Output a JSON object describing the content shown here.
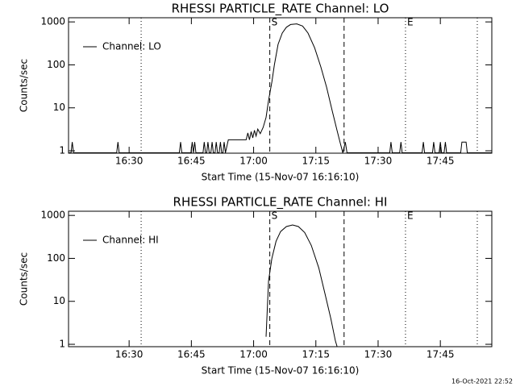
{
  "chart_data": [
    {
      "type": "line",
      "title": "RHESSI PARTICLE_RATE Channel: LO",
      "xlabel": "Start Time (15-Nov-07 16:16:10)",
      "ylabel": "Counts/sec",
      "log_y": true,
      "legend": "upper left",
      "xlim": [
        15.4,
        117.4
      ],
      "ylim": [
        0.88,
        1250
      ],
      "xticks": [
        {
          "value": 30,
          "label": "16:30"
        },
        {
          "value": 45,
          "label": "16:45"
        },
        {
          "value": 60,
          "label": "17:00"
        },
        {
          "value": 75,
          "label": "17:15"
        },
        {
          "value": 90,
          "label": "17:30"
        },
        {
          "value": 105,
          "label": "17:45"
        }
      ],
      "yticks": [
        1,
        10,
        100,
        1000
      ],
      "vlines": [
        {
          "x": 32.9,
          "style": "dotted"
        },
        {
          "x": 63.9,
          "style": "dashed",
          "label": "S"
        },
        {
          "x": 81.8,
          "style": "dashed"
        },
        {
          "x": 96.6,
          "style": "dotted",
          "label": "E"
        },
        {
          "x": 113.9,
          "style": "dotted"
        }
      ],
      "series": [
        {
          "name": "Channel: LO",
          "color": "#000000",
          "x": [
            15.5,
            16.0,
            16.3,
            16.6,
            27.0,
            27.3,
            27.6,
            42.1,
            42.4,
            42.7,
            44.9,
            45.2,
            45.5,
            45.8,
            46.1,
            47.8,
            48.1,
            48.4,
            48.7,
            49.0,
            49.3,
            49.7,
            50.0,
            50.3,
            50.7,
            51.0,
            51.3,
            51.7,
            52.0,
            52.3,
            52.6,
            52.9,
            53.2,
            53.9,
            58.2,
            58.6,
            59.0,
            59.4,
            59.8,
            60.2,
            60.6,
            61.0,
            61.6,
            62.3,
            63.0,
            63.6,
            64.4,
            65.0,
            65.9,
            66.9,
            67.9,
            68.9,
            70.4,
            71.8,
            73.1,
            74.7,
            76.2,
            77.6,
            79.0,
            80.1,
            80.9,
            81.5,
            82.1,
            82.5,
            92.8,
            93.1,
            93.4,
            95.2,
            95.5,
            95.8,
            100.6,
            100.9,
            101.2,
            103.1,
            103.4,
            103.7,
            104.7,
            105.0,
            105.3,
            105.9,
            106.2,
            106.5,
            109.9,
            110.2,
            111.2,
            111.5,
            117.3
          ],
          "values": [
            0.9,
            0.9,
            1.6,
            0.9,
            0.9,
            1.6,
            0.9,
            0.9,
            1.6,
            0.9,
            0.9,
            1.6,
            0.9,
            1.6,
            0.9,
            0.9,
            1.6,
            0.9,
            0.9,
            1.6,
            0.9,
            0.9,
            1.6,
            0.9,
            0.9,
            1.6,
            0.9,
            0.9,
            1.6,
            0.9,
            0.9,
            1.6,
            0.9,
            1.8,
            1.8,
            2.6,
            1.8,
            2.8,
            2.0,
            3.0,
            2.2,
            3.2,
            2.5,
            3.5,
            6,
            15,
            40,
            100,
            300,
            550,
            750,
            870,
            900,
            800,
            550,
            250,
            90,
            30,
            8,
            3,
            1.5,
            0.9,
            1.6,
            0.9,
            0.9,
            1.6,
            0.9,
            0.9,
            1.6,
            0.9,
            0.9,
            1.6,
            0.9,
            0.9,
            1.6,
            0.9,
            0.9,
            1.6,
            0.9,
            0.9,
            1.6,
            0.9,
            0.9,
            1.6,
            1.6,
            0.9,
            0.9
          ]
        }
      ]
    },
    {
      "type": "line",
      "title": "RHESSI PARTICLE_RATE Channel: HI",
      "xlabel": "Start Time (15-Nov-07 16:16:10)",
      "ylabel": "Counts/sec",
      "log_y": true,
      "legend": "upper left",
      "xlim": [
        15.4,
        117.4
      ],
      "ylim": [
        0.88,
        1250
      ],
      "xticks": [
        {
          "value": 30,
          "label": "16:30"
        },
        {
          "value": 45,
          "label": "16:45"
        },
        {
          "value": 60,
          "label": "17:00"
        },
        {
          "value": 75,
          "label": "17:15"
        },
        {
          "value": 90,
          "label": "17:30"
        },
        {
          "value": 105,
          "label": "17:45"
        }
      ],
      "yticks": [
        1,
        10,
        100,
        1000
      ],
      "vlines": [
        {
          "x": 32.9,
          "style": "dotted"
        },
        {
          "x": 63.9,
          "style": "dashed",
          "label": "S"
        },
        {
          "x": 81.8,
          "style": "dashed"
        },
        {
          "x": 96.6,
          "style": "dotted",
          "label": "E"
        },
        {
          "x": 113.9,
          "style": "dotted"
        }
      ],
      "series": [
        {
          "name": "Channel: HI",
          "color": "#000000",
          "x": [
            63.0,
            63.6,
            64.4,
            65.4,
            66.5,
            67.9,
            69.4,
            70.8,
            72.3,
            73.9,
            75.7,
            77.2,
            78.6,
            79.7,
            80.1
          ],
          "values": [
            1.5,
            30,
            100,
            250,
            420,
            550,
            600,
            550,
            400,
            200,
            60,
            15,
            4,
            1.2,
            0.9
          ]
        }
      ]
    }
  ],
  "footer": "16-Oct-2021 22:52"
}
